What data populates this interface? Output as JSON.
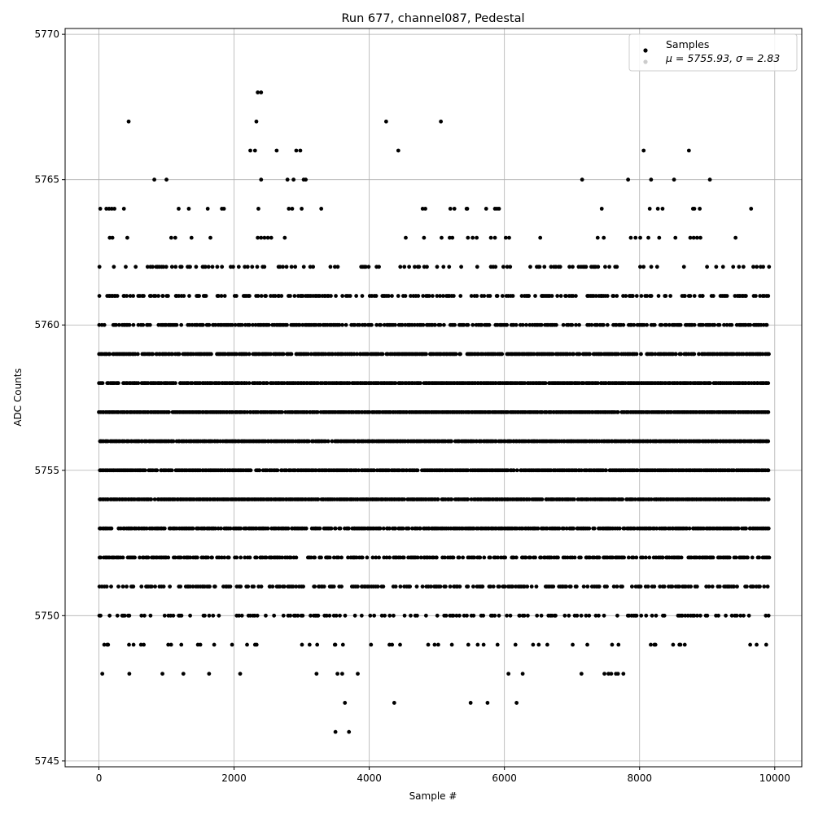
{
  "chart_data": {
    "type": "scatter",
    "title": "Run 677, channel087, Pedestal",
    "xlabel": "Sample #",
    "ylabel": "ADC Counts",
    "xlim": [
      -500,
      10400
    ],
    "ylim": [
      5744.8,
      5770.2
    ],
    "x_ticks": [
      0,
      2000,
      4000,
      6000,
      8000,
      10000
    ],
    "y_ticks": [
      5745,
      5750,
      5755,
      5760,
      5765,
      5770
    ],
    "grid": true,
    "legend_placement": "top-right",
    "series": [
      {
        "name": "Samples",
        "color": "#000000",
        "points": [
          [
            20,
            5764
          ],
          [
            110,
            5764
          ],
          [
            150,
            5764
          ],
          [
            190,
            5764
          ],
          [
            230,
            5764
          ],
          [
            370,
            5764
          ],
          [
            1180,
            5764
          ],
          [
            1330,
            5764
          ],
          [
            1610,
            5764
          ],
          [
            1820,
            5764
          ],
          [
            1850,
            5764
          ],
          [
            2360,
            5764
          ],
          [
            2810,
            5764
          ],
          [
            2860,
            5764
          ],
          [
            3000,
            5764
          ],
          [
            3290,
            5764
          ],
          [
            4790,
            5764
          ],
          [
            4830,
            5764
          ],
          [
            5200,
            5764
          ],
          [
            5260,
            5764
          ],
          [
            5440,
            5764
          ],
          [
            5450,
            5764
          ],
          [
            5730,
            5764
          ],
          [
            5860,
            5764
          ],
          [
            5890,
            5764
          ],
          [
            5920,
            5764
          ],
          [
            7440,
            5764
          ],
          [
            8150,
            5764
          ],
          [
            8270,
            5764
          ],
          [
            8340,
            5764
          ],
          [
            8790,
            5764
          ],
          [
            8810,
            5764
          ],
          [
            8890,
            5764
          ],
          [
            9650,
            5764
          ],
          [
            440,
            5767
          ],
          [
            2330,
            5767
          ],
          [
            4250,
            5767
          ],
          [
            5060,
            5767
          ],
          [
            2350,
            5768
          ],
          [
            2400,
            5768
          ],
          [
            2240,
            5766
          ],
          [
            2310,
            5766
          ],
          [
            2630,
            5766
          ],
          [
            2920,
            5766
          ],
          [
            2980,
            5766
          ],
          [
            4430,
            5766
          ],
          [
            8060,
            5766
          ],
          [
            8730,
            5766
          ],
          [
            820,
            5765
          ],
          [
            1000,
            5765
          ],
          [
            2400,
            5765
          ],
          [
            2790,
            5765
          ],
          [
            2880,
            5765
          ],
          [
            3030,
            5765
          ],
          [
            3060,
            5765
          ],
          [
            7150,
            5765
          ],
          [
            7830,
            5765
          ],
          [
            8170,
            5765
          ],
          [
            8510,
            5765
          ],
          [
            9040,
            5765
          ],
          [
            160,
            5763
          ],
          [
            200,
            5763
          ],
          [
            420,
            5763
          ],
          [
            1070,
            5763
          ],
          [
            1130,
            5763
          ],
          [
            1370,
            5763
          ],
          [
            1650,
            5763
          ],
          [
            2350,
            5763
          ],
          [
            2400,
            5763
          ],
          [
            2450,
            5763
          ],
          [
            2500,
            5763
          ],
          [
            2550,
            5763
          ],
          [
            2750,
            5763
          ],
          [
            4540,
            5763
          ],
          [
            4810,
            5763
          ],
          [
            5070,
            5763
          ],
          [
            5190,
            5763
          ],
          [
            5230,
            5763
          ],
          [
            5460,
            5763
          ],
          [
            5530,
            5763
          ],
          [
            5590,
            5763
          ],
          [
            5800,
            5763
          ],
          [
            5860,
            5763
          ],
          [
            6020,
            5763
          ],
          [
            6070,
            5763
          ],
          [
            6530,
            5763
          ],
          [
            7380,
            5763
          ],
          [
            7470,
            5763
          ],
          [
            7870,
            5763
          ],
          [
            7940,
            5763
          ],
          [
            8010,
            5763
          ],
          [
            8130,
            5763
          ],
          [
            8290,
            5763
          ],
          [
            8530,
            5763
          ],
          [
            8750,
            5763
          ],
          [
            8800,
            5763
          ],
          [
            8850,
            5763
          ],
          [
            8900,
            5763
          ],
          [
            9420,
            5763
          ],
          [
            50,
            5748
          ],
          [
            450,
            5748
          ],
          [
            940,
            5748
          ],
          [
            1250,
            5748
          ],
          [
            1630,
            5748
          ],
          [
            2090,
            5748
          ],
          [
            3220,
            5748
          ],
          [
            3530,
            5748
          ],
          [
            3600,
            5748
          ],
          [
            3830,
            5748
          ],
          [
            6060,
            5748
          ],
          [
            6270,
            5748
          ],
          [
            7140,
            5748
          ],
          [
            7480,
            5748
          ],
          [
            7540,
            5748
          ],
          [
            7580,
            5748
          ],
          [
            7650,
            5748
          ],
          [
            7680,
            5748
          ],
          [
            7760,
            5748
          ],
          [
            3640,
            5747
          ],
          [
            4370,
            5747
          ],
          [
            5500,
            5747
          ],
          [
            5750,
            5747
          ],
          [
            6180,
            5747
          ],
          [
            3500,
            5746
          ],
          [
            3700,
            5746
          ]
        ]
      }
    ],
    "bands": [
      {
        "y": 5749,
        "start": 0,
        "end": 9900,
        "density": 0.12,
        "seed": 11
      },
      {
        "y": 5750,
        "start": 0,
        "end": 9900,
        "density": 0.3,
        "seed": 12
      },
      {
        "y": 5751,
        "start": 0,
        "end": 9900,
        "density": 0.5,
        "seed": 13
      },
      {
        "y": 5752,
        "start": 0,
        "end": 9900,
        "density": 0.65,
        "seed": 14
      },
      {
        "y": 5753,
        "start": 0,
        "end": 9900,
        "density": 0.85,
        "seed": 15
      },
      {
        "y": 5754,
        "start": 0,
        "end": 9900,
        "density": 0.95,
        "seed": 16
      },
      {
        "y": 5755,
        "start": 0,
        "end": 9900,
        "density": 0.97,
        "seed": 17
      },
      {
        "y": 5756,
        "start": 0,
        "end": 9900,
        "density": 0.98,
        "seed": 18
      },
      {
        "y": 5757,
        "start": 0,
        "end": 9900,
        "density": 0.98,
        "seed": 19
      },
      {
        "y": 5758,
        "start": 0,
        "end": 9900,
        "density": 0.95,
        "seed": 20
      },
      {
        "y": 5759,
        "start": 0,
        "end": 9900,
        "density": 0.85,
        "seed": 21
      },
      {
        "y": 5760,
        "start": 0,
        "end": 9900,
        "density": 0.65,
        "seed": 22
      },
      {
        "y": 5761,
        "start": 0,
        "end": 9900,
        "density": 0.5,
        "seed": 23
      },
      {
        "y": 5762,
        "start": 0,
        "end": 9900,
        "density": 0.25,
        "seed": 24
      }
    ],
    "legend": {
      "entries": [
        "Samples",
        "μ = 5755.93, σ = 2.83"
      ]
    }
  }
}
